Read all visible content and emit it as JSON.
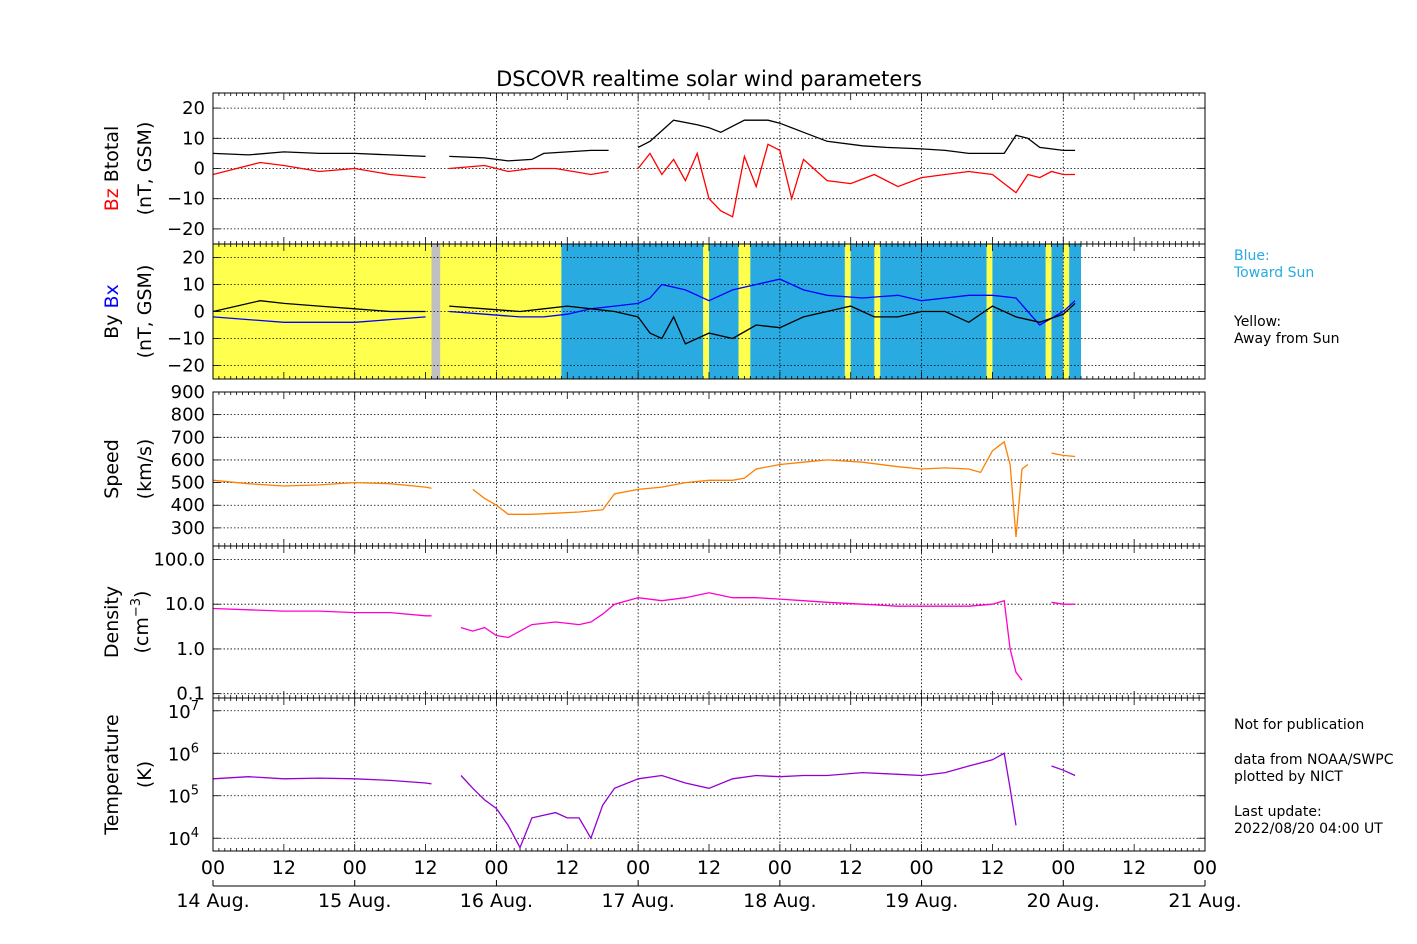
{
  "title": "DSCOVR realtime solar wind parameters",
  "colors": {
    "bz": "#ff0000",
    "btotal": "#000000",
    "bx": "#0000ff",
    "by": "#000000",
    "speed": "#ff7f00",
    "density": "#ff00cc",
    "temperature": "#9400d3",
    "toward_sun": "#29abe2",
    "away_from_sun": "#ffff4d",
    "missing": "#c0c0c0"
  },
  "legend_side": {
    "blue_label": "Blue:",
    "blue_text": "Toward Sun",
    "yellow_label": "Yellow:",
    "yellow_text": "Away from Sun"
  },
  "notes": {
    "not_for_publication": "Not for publication",
    "data_from": "data from NOAA/SWPC",
    "plotted_by": "plotted by NICT",
    "last_update_label": "Last update:",
    "last_update_value": "2022/08/20 04:00 UT"
  },
  "x_axis": {
    "hour_ticks": [
      "00",
      "12",
      "00",
      "12",
      "00",
      "12",
      "00",
      "12",
      "00",
      "12",
      "00",
      "12",
      "00",
      "12",
      "00"
    ],
    "date_labels": [
      "14 Aug.",
      "15 Aug.",
      "16 Aug.",
      "17 Aug.",
      "18 Aug.",
      "19 Aug.",
      "20 Aug.",
      "21 Aug."
    ],
    "range_hours": [
      0,
      168
    ]
  },
  "chart_data": [
    {
      "type": "line",
      "panel": "btotal_bz",
      "ylabel_parts": [
        "Bz",
        "Btotal",
        "(nT, GSM)"
      ],
      "ylim": [
        -25,
        25
      ],
      "y_ticks": [
        20,
        10,
        0,
        -10,
        -20
      ],
      "grid": true,
      "series": [
        {
          "name": "Btotal",
          "color": "#000000",
          "x": [
            0,
            6,
            12,
            18,
            24,
            30,
            36,
            37,
            38,
            40,
            46,
            50,
            54,
            56,
            60,
            64,
            67,
            68,
            70,
            72,
            74,
            78,
            82,
            84,
            86,
            88,
            90,
            92,
            94,
            96,
            100,
            104,
            110,
            114,
            120,
            124,
            128,
            130,
            134,
            136,
            138,
            140,
            144,
            146
          ],
          "y": [
            5,
            4.5,
            5.5,
            5,
            5,
            4.5,
            4,
            null,
            null,
            4,
            3.5,
            2.5,
            3,
            5,
            5.5,
            6,
            6,
            null,
            null,
            7,
            9,
            16,
            14.5,
            13.5,
            12,
            14,
            16,
            16,
            16,
            15,
            12,
            9,
            7.5,
            7,
            6.5,
            6,
            5,
            5,
            5,
            11,
            10,
            7,
            6,
            6
          ]
        },
        {
          "name": "Bz",
          "color": "#ff0000",
          "x": [
            0,
            4,
            8,
            12,
            18,
            24,
            30,
            36,
            37,
            38,
            40,
            46,
            50,
            54,
            58,
            64,
            67,
            68,
            70,
            72,
            74,
            76,
            78,
            80,
            82,
            84,
            86,
            88,
            90,
            92,
            94,
            96,
            98,
            100,
            104,
            108,
            112,
            116,
            120,
            124,
            128,
            132,
            134,
            136,
            138,
            140,
            142,
            144,
            146
          ],
          "y": [
            -2,
            0,
            2,
            1,
            -1,
            0,
            -2,
            -3,
            null,
            null,
            0,
            1,
            -1,
            0,
            0,
            -2,
            -1,
            null,
            null,
            0,
            5,
            -2,
            3,
            -4,
            5,
            -10,
            -14,
            -16,
            4,
            -6,
            8,
            6,
            -10,
            3,
            -4,
            -5,
            -2,
            -6,
            -3,
            -2,
            -1,
            -2,
            -5,
            -8,
            -2,
            -3,
            -1,
            -2,
            -2
          ]
        }
      ]
    },
    {
      "type": "line",
      "panel": "by_bx",
      "ylabel_parts": [
        "By",
        "Bx",
        "(nT, GSM)"
      ],
      "ylim": [
        -25,
        25
      ],
      "y_ticks": [
        20,
        10,
        0,
        -10,
        -20
      ],
      "grid": true,
      "background_sectors": [
        {
          "from": 0,
          "to": 37,
          "state": "away"
        },
        {
          "from": 37,
          "to": 38.5,
          "state": "missing"
        },
        {
          "from": 38.5,
          "to": 59,
          "state": "away"
        },
        {
          "from": 59,
          "to": 147,
          "state": "toward"
        }
      ],
      "away_bands_in_toward": [
        [
          83,
          84
        ],
        [
          89,
          91
        ],
        [
          107,
          108
        ],
        [
          112,
          113
        ],
        [
          131,
          132
        ],
        [
          141,
          142
        ],
        [
          144,
          145
        ]
      ],
      "series": [
        {
          "name": "Bx",
          "color": "#0000ff",
          "x": [
            0,
            6,
            12,
            18,
            24,
            30,
            36,
            37,
            38,
            40,
            46,
            52,
            56,
            60,
            64,
            68,
            72,
            74,
            76,
            80,
            84,
            88,
            92,
            96,
            100,
            104,
            110,
            116,
            120,
            124,
            128,
            132,
            136,
            140,
            144,
            146
          ],
          "y": [
            -2,
            -3,
            -4,
            -4,
            -4,
            -3,
            -2,
            null,
            null,
            0,
            -1,
            -2,
            -2,
            -1,
            1,
            2,
            3,
            5,
            10,
            8,
            4,
            8,
            10,
            12,
            8,
            6,
            5,
            6,
            4,
            5,
            6,
            6,
            5,
            -5,
            0,
            4
          ]
        },
        {
          "name": "By",
          "color": "#000000",
          "x": [
            0,
            4,
            8,
            12,
            18,
            24,
            30,
            36,
            37,
            38,
            40,
            46,
            52,
            56,
            60,
            64,
            68,
            72,
            74,
            76,
            78,
            80,
            84,
            88,
            92,
            96,
            100,
            104,
            108,
            112,
            116,
            120,
            124,
            128,
            132,
            136,
            140,
            144,
            146
          ],
          "y": [
            0,
            2,
            4,
            3,
            2,
            1,
            0,
            0,
            null,
            null,
            2,
            1,
            0,
            1,
            2,
            1,
            0,
            -2,
            -8,
            -10,
            -2,
            -12,
            -8,
            -10,
            -5,
            -6,
            -2,
            0,
            2,
            -2,
            -2,
            0,
            0,
            -4,
            2,
            -2,
            -4,
            -1,
            3
          ]
        }
      ]
    },
    {
      "type": "line",
      "panel": "speed",
      "ylabel_parts": [
        "Speed",
        "(km/s)"
      ],
      "ylim": [
        220,
        900
      ],
      "y_ticks": [
        900,
        800,
        700,
        600,
        500,
        400,
        300
      ],
      "grid": true,
      "series": [
        {
          "name": "Speed",
          "color": "#ff7f00",
          "x": [
            0,
            6,
            12,
            18,
            24,
            30,
            36,
            37,
            38,
            40,
            44,
            46,
            48,
            50,
            54,
            58,
            62,
            64,
            66,
            68,
            72,
            76,
            80,
            84,
            88,
            90,
            92,
            96,
            100,
            104,
            110,
            116,
            120,
            124,
            128,
            130,
            132,
            134,
            135,
            136,
            137,
            138,
            139,
            140,
            142,
            144,
            146
          ],
          "y": [
            510,
            495,
            485,
            490,
            500,
            495,
            480,
            475,
            null,
            null,
            470,
            430,
            400,
            360,
            360,
            365,
            370,
            375,
            380,
            450,
            470,
            480,
            500,
            510,
            510,
            520,
            560,
            580,
            590,
            600,
            590,
            570,
            560,
            565,
            560,
            545,
            640,
            680,
            580,
            260,
            560,
            580,
            null,
            null,
            630,
            620,
            615
          ]
        }
      ]
    },
    {
      "type": "line",
      "panel": "density",
      "ylabel_parts": [
        "Density",
        "(cm",
        "−3",
        ")"
      ],
      "y_scale": "log",
      "ylim": [
        0.08,
        200
      ],
      "y_ticks": [
        100.0,
        10.0,
        1.0,
        0.1
      ],
      "y_tick_labels": [
        "100.0",
        "10.0",
        "1.0",
        "0.1"
      ],
      "grid": true,
      "series": [
        {
          "name": "Density",
          "color": "#ff00cc",
          "x": [
            0,
            6,
            12,
            18,
            24,
            30,
            36,
            37,
            38,
            40,
            42,
            44,
            46,
            48,
            50,
            54,
            58,
            62,
            64,
            66,
            68,
            72,
            76,
            80,
            84,
            88,
            92,
            96,
            100,
            104,
            110,
            116,
            120,
            124,
            128,
            132,
            134,
            135,
            136,
            137,
            138,
            139,
            140,
            142,
            144,
            146
          ],
          "y": [
            8,
            7.5,
            7,
            7,
            6.5,
            6.5,
            5.5,
            5.5,
            null,
            null,
            3,
            2.5,
            3,
            2,
            1.8,
            3.5,
            4,
            3.5,
            4,
            6,
            10,
            14,
            12,
            14,
            18,
            14,
            14,
            13,
            12,
            11,
            10,
            9,
            9,
            9,
            9,
            10,
            12,
            1,
            0.3,
            0.2,
            null,
            null,
            null,
            11,
            10,
            10
          ]
        }
      ]
    },
    {
      "type": "line",
      "panel": "temperature",
      "ylabel_parts": [
        "Temperature",
        "(K)"
      ],
      "y_scale": "log",
      "ylim": [
        5000,
        20000000
      ],
      "y_ticks": [
        10000,
        100000,
        1000000,
        10000000
      ],
      "y_tick_labels": [
        {
          "base": "10",
          "exp": "4"
        },
        {
          "base": "10",
          "exp": "5"
        },
        {
          "base": "10",
          "exp": "6"
        },
        {
          "base": "10",
          "exp": "7"
        }
      ],
      "grid": true,
      "series": [
        {
          "name": "Temperature",
          "color": "#9400d3",
          "x": [
            0,
            6,
            12,
            18,
            24,
            30,
            36,
            37,
            38,
            40,
            42,
            44,
            46,
            48,
            50,
            52,
            54,
            58,
            60,
            62,
            64,
            66,
            68,
            72,
            76,
            80,
            84,
            88,
            92,
            96,
            100,
            104,
            110,
            116,
            120,
            124,
            128,
            132,
            134,
            135,
            136,
            137,
            138,
            139,
            140,
            142,
            144,
            146
          ],
          "y": [
            250000,
            280000,
            250000,
            260000,
            250000,
            230000,
            200000,
            190000,
            null,
            null,
            300000,
            150000,
            80000,
            50000,
            20000,
            6000,
            30000,
            40000,
            30000,
            30000,
            10000,
            60000,
            150000,
            250000,
            300000,
            200000,
            150000,
            250000,
            300000,
            280000,
            300000,
            300000,
            350000,
            320000,
            300000,
            350000,
            500000,
            700000,
            1000000,
            150000,
            20000,
            null,
            null,
            null,
            null,
            500000,
            400000,
            300000
          ]
        }
      ]
    }
  ]
}
